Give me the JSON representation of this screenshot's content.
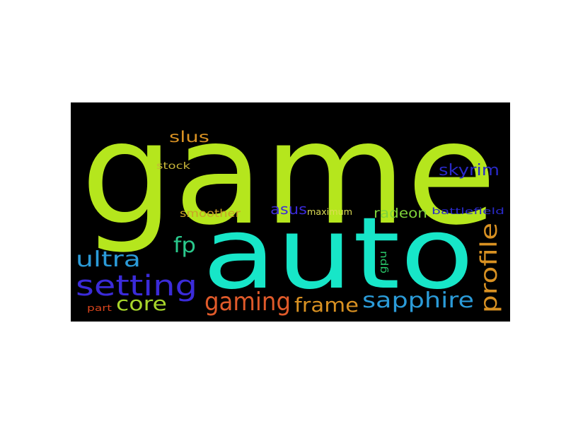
{
  "word_cloud": {
    "background_color": "#000000",
    "words": [
      {
        "id": "game",
        "text": "game",
        "color": "#b5e61d"
      },
      {
        "id": "auto",
        "text": "auto",
        "color": "#17e6c8"
      },
      {
        "id": "setting",
        "text": "setting",
        "color": "#3b2bd9"
      },
      {
        "id": "gaming",
        "text": "gaming",
        "color": "#e05a2a"
      },
      {
        "id": "sapphire",
        "text": "sapphire",
        "color": "#2b9bd8"
      },
      {
        "id": "frame",
        "text": "frame",
        "color": "#d99122"
      },
      {
        "id": "profile",
        "text": "profile",
        "color": "#d99122"
      },
      {
        "id": "ultra",
        "text": "ultra",
        "color": "#2b9bd8"
      },
      {
        "id": "core",
        "text": "core",
        "color": "#a8d62b"
      },
      {
        "id": "fp",
        "text": "fp",
        "color": "#2ac88c"
      },
      {
        "id": "skyrim",
        "text": "skyrim",
        "color": "#2a2ac8"
      },
      {
        "id": "radeon",
        "text": "radeon",
        "color": "#7fd23a"
      },
      {
        "id": "slus",
        "text": "slus",
        "color": "#d99122"
      },
      {
        "id": "asus",
        "text": "asus",
        "color": "#3b2bd9"
      },
      {
        "id": "smoother",
        "text": "smoother",
        "color": "#c9a227"
      },
      {
        "id": "maximum",
        "text": "maximum",
        "color": "#dddd55"
      },
      {
        "id": "battlefield",
        "text": "battlefield",
        "color": "#2a2ac8"
      },
      {
        "id": "stock",
        "text": "stock",
        "color": "#c9b63a"
      },
      {
        "id": "gpu",
        "text": "gpu",
        "color": "#2ac86a"
      },
      {
        "id": "part",
        "text": "part",
        "color": "#d8441c"
      }
    ]
  }
}
